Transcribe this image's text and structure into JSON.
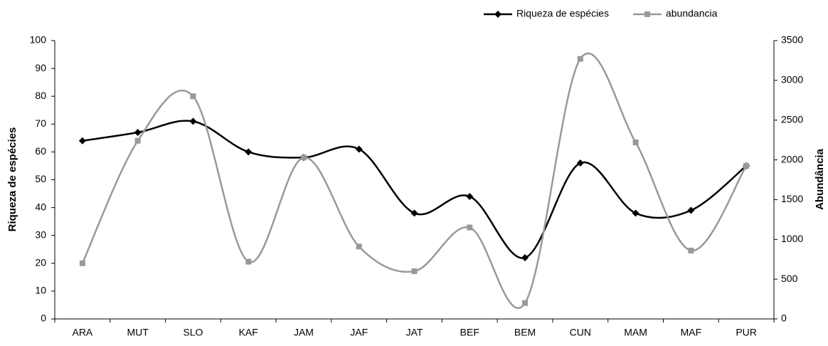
{
  "chart_data": {
    "type": "line",
    "categories": [
      "ARA",
      "MUT",
      "SLO",
      "KAF",
      "JAM",
      "JAF",
      "JAT",
      "BEF",
      "BEM",
      "CUN",
      "MAM",
      "MAF",
      "PUR"
    ],
    "series": [
      {
        "name": "Riqueza de espécies",
        "color": "#000000",
        "marker": "diamond",
        "values": [
          64,
          67,
          71,
          60,
          58,
          61,
          38,
          44,
          22,
          56,
          38,
          39,
          55
        ]
      },
      {
        "name": "abundancia",
        "color": "#999999",
        "marker": "square",
        "axis": "y2",
        "values": [
          700,
          2240,
          2800,
          720,
          2030,
          910,
          600,
          1150,
          200,
          3270,
          2220,
          860,
          1925
        ]
      }
    ],
    "ylabel": "Riqueza de espécies",
    "y2label": "Abundância",
    "ylim": [
      0,
      100
    ],
    "yticks": [
      0,
      10,
      20,
      30,
      40,
      50,
      60,
      70,
      80,
      90,
      100
    ],
    "y2lim": [
      0,
      3500
    ],
    "y2ticks": [
      0,
      500,
      1000,
      1500,
      2000,
      2500,
      3000,
      3500
    ],
    "smooth": true,
    "legend": "top-right"
  }
}
